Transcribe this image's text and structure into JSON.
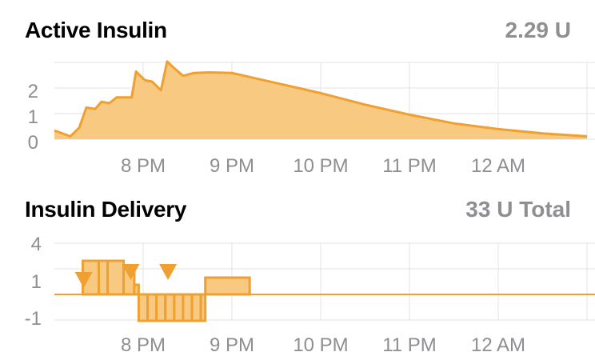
{
  "active_insulin": {
    "title": "Active Insulin",
    "value": "2.29 U"
  },
  "insulin_delivery": {
    "title": "Insulin Delivery",
    "value": "33 U Total"
  },
  "colors": {
    "accent": "#f0a030",
    "fill": "#f7c981",
    "grid": "#e3e3e3",
    "tick": "#8e8e93"
  },
  "chart_data": [
    {
      "type": "area",
      "title": "",
      "xlabel": "",
      "ylabel": "",
      "x_ticks": [
        "8 PM",
        "9 PM",
        "10 PM",
        "11 PM",
        "12 AM"
      ],
      "y_ticks": [
        "0",
        "1",
        "2"
      ],
      "ylim": [
        0,
        3
      ],
      "x_unit": "hours since 7 PM",
      "x": [
        0.0,
        0.18,
        0.28,
        0.36,
        0.46,
        0.53,
        0.62,
        0.7,
        0.78,
        0.87,
        0.92,
        1.02,
        1.1,
        1.2,
        1.27,
        1.32,
        1.45,
        1.57,
        1.75,
        2.0,
        2.5,
        3.0,
        3.5,
        4.0,
        4.5,
        5.0,
        5.5,
        6.0
      ],
      "values": [
        0.3,
        0.1,
        0.4,
        1.1,
        1.05,
        1.3,
        1.25,
        1.45,
        1.45,
        1.45,
        2.35,
        2.05,
        2.0,
        1.7,
        2.7,
        2.55,
        2.2,
        2.3,
        2.32,
        2.3,
        1.95,
        1.6,
        1.2,
        0.85,
        0.55,
        0.35,
        0.2,
        0.1
      ],
      "grid": true
    },
    {
      "type": "bar",
      "title": "",
      "xlabel": "",
      "ylabel": "",
      "x_ticks": [
        "8 PM",
        "9 PM",
        "10 PM",
        "11 PM",
        "12 AM"
      ],
      "y_ticks": [
        "4",
        "1",
        "-1"
      ],
      "baseline": 0,
      "note": "temp basal segments relative to scheduled basal, in U/hr",
      "segments": [
        {
          "x0": 0.32,
          "x1": 0.5,
          "value": 1.4
        },
        {
          "x0": 0.5,
          "x1": 0.6,
          "value": 1.4
        },
        {
          "x0": 0.6,
          "x1": 0.78,
          "value": 1.4
        },
        {
          "x0": 0.78,
          "x1": 0.9,
          "value": 1.2
        },
        {
          "x0": 0.9,
          "x1": 0.95,
          "value": 0.4
        },
        {
          "x0": 0.95,
          "x1": 1.05,
          "value": -1.1
        },
        {
          "x0": 1.05,
          "x1": 1.15,
          "value": -1.1
        },
        {
          "x0": 1.15,
          "x1": 1.25,
          "value": -1.1
        },
        {
          "x0": 1.25,
          "x1": 1.35,
          "value": -1.1
        },
        {
          "x0": 1.35,
          "x1": 1.45,
          "value": -1.1
        },
        {
          "x0": 1.45,
          "x1": 1.55,
          "value": -1.1
        },
        {
          "x0": 1.55,
          "x1": 1.65,
          "value": -1.1
        },
        {
          "x0": 1.65,
          "x1": 1.7,
          "value": -1.1
        },
        {
          "x0": 1.7,
          "x1": 2.2,
          "value": 0.7
        }
      ],
      "boluses": [
        {
          "x": 0.33
        },
        {
          "x": 0.86
        },
        {
          "x": 1.28
        }
      ],
      "grid": true
    }
  ]
}
